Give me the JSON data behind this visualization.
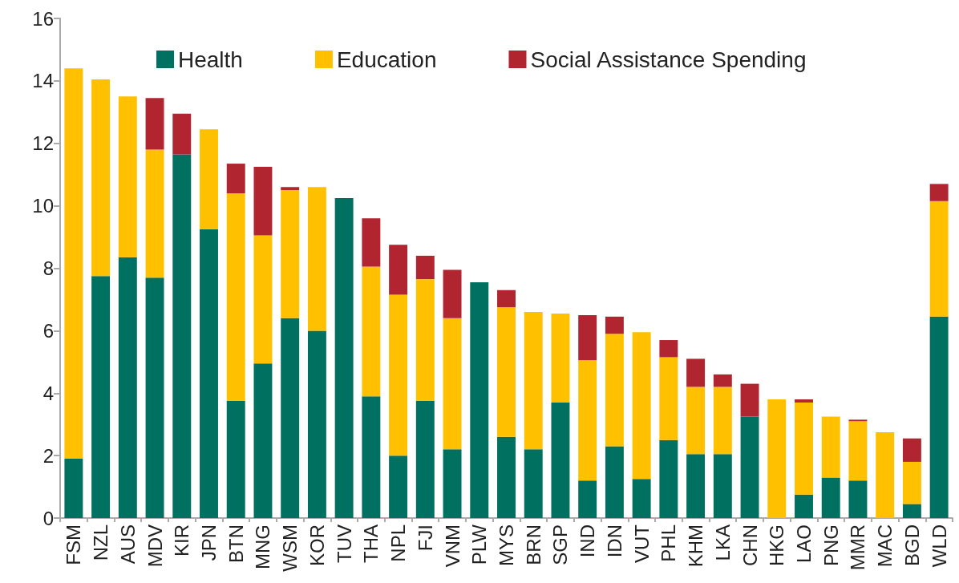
{
  "chart_data": {
    "type": "bar",
    "stacked": true,
    "legend": "top",
    "grid": false,
    "categories": [
      "FSM",
      "NZL",
      "AUS",
      "MDV",
      "KIR",
      "JPN",
      "BTN",
      "MNG",
      "WSM",
      "KOR",
      "TUV",
      "THA",
      "NPL",
      "FJI",
      "VNM",
      "PLW",
      "MYS",
      "BRN",
      "SGP",
      "IND",
      "IDN",
      "VUT",
      "PHL",
      "KHM",
      "LKA",
      "CHN",
      "HKG",
      "LAO",
      "PNG",
      "MMR",
      "MAC",
      "BGD",
      "WLD"
    ],
    "ylim": [
      0,
      16
    ],
    "yticks": [
      0,
      2,
      4,
      6,
      8,
      10,
      12,
      14,
      16
    ],
    "series": [
      {
        "name": "Health",
        "color": "#007060",
        "values": [
          1.9,
          7.75,
          8.35,
          7.7,
          11.65,
          9.25,
          3.75,
          4.95,
          6.4,
          6.0,
          10.25,
          3.9,
          2.0,
          3.75,
          2.2,
          7.55,
          2.6,
          2.2,
          3.7,
          1.2,
          2.3,
          1.25,
          2.5,
          2.05,
          2.05,
          3.25,
          null,
          0.75,
          1.3,
          1.2,
          null,
          0.45,
          6.45
        ]
      },
      {
        "name": "Education",
        "color": "#ffc000",
        "values": [
          12.5,
          6.3,
          5.15,
          4.1,
          null,
          3.2,
          6.65,
          4.1,
          4.1,
          4.6,
          null,
          4.15,
          5.15,
          3.9,
          4.2,
          null,
          4.15,
          4.4,
          2.85,
          3.85,
          3.6,
          4.7,
          2.65,
          2.15,
          2.15,
          null,
          3.8,
          2.95,
          1.95,
          1.9,
          2.75,
          1.35,
          3.7
        ]
      },
      {
        "name": "Social Assistance Spending",
        "color": "#b0252f",
        "values": [
          null,
          null,
          null,
          1.65,
          1.3,
          null,
          0.95,
          2.2,
          0.1,
          null,
          null,
          1.55,
          1.6,
          0.75,
          1.55,
          null,
          0.55,
          null,
          null,
          1.45,
          0.55,
          null,
          0.55,
          0.9,
          0.4,
          1.05,
          null,
          0.1,
          null,
          0.05,
          null,
          0.75,
          0.55
        ]
      }
    ]
  }
}
